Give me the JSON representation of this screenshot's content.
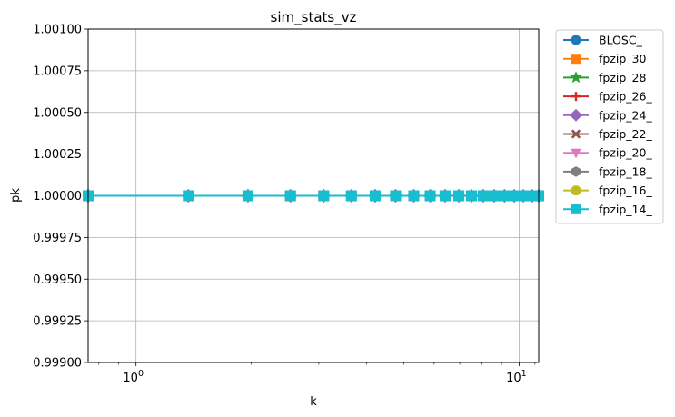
{
  "chart_data": {
    "type": "line",
    "title": "sim_stats_vz",
    "xlabel": "k",
    "ylabel": "pk",
    "x_scale": "log",
    "xlim": [
      0.75,
      11.25
    ],
    "ylim": [
      0.999,
      1.001
    ],
    "grid": true,
    "legend_position": "outside-right",
    "x_ticks": [
      {
        "value": 1,
        "label": "10",
        "exp": "0"
      },
      {
        "value": 10,
        "label": "10",
        "exp": "1"
      }
    ],
    "y_ticks": [
      {
        "value": 0.999,
        "label": "0.99900"
      },
      {
        "value": 0.99925,
        "label": "0.99925"
      },
      {
        "value": 0.9995,
        "label": "0.99950"
      },
      {
        "value": 0.99975,
        "label": "0.99975"
      },
      {
        "value": 1.0,
        "label": "1.00000"
      },
      {
        "value": 1.00025,
        "label": "1.00025"
      },
      {
        "value": 1.0005,
        "label": "1.00050"
      },
      {
        "value": 1.00075,
        "label": "1.00075"
      },
      {
        "value": 1.001,
        "label": "1.00100"
      }
    ],
    "x": [
      0.75,
      1.37,
      1.96,
      2.53,
      3.09,
      3.65,
      4.21,
      4.76,
      5.31,
      5.86,
      6.41,
      6.96,
      7.51,
      8.06,
      8.61,
      9.16,
      9.71,
      10.26,
      10.81,
      11.25
    ],
    "series": [
      {
        "name": "BLOSC_",
        "color": "#1f77b4",
        "marker": "circle",
        "values": [
          1,
          1,
          1,
          1,
          1,
          1,
          1,
          1,
          1,
          1,
          1,
          1,
          1,
          1,
          1,
          1,
          1,
          1,
          1,
          1
        ]
      },
      {
        "name": "fpzip_30_",
        "color": "#ff7f0e",
        "marker": "square",
        "values": [
          1,
          1,
          1,
          1,
          1,
          1,
          1,
          1,
          1,
          1,
          1,
          1,
          1,
          1,
          1,
          1,
          1,
          1,
          1,
          1
        ]
      },
      {
        "name": "fpzip_28_",
        "color": "#2ca02c",
        "marker": "star",
        "values": [
          1,
          1,
          1,
          1,
          1,
          1,
          1,
          1,
          1,
          1,
          1,
          1,
          1,
          1,
          1,
          1,
          1,
          1,
          1,
          1
        ]
      },
      {
        "name": "fpzip_26_",
        "color": "#d62728",
        "marker": "plus",
        "values": [
          1,
          1,
          1,
          1,
          1,
          1,
          1,
          1,
          1,
          1,
          1,
          1,
          1,
          1,
          1,
          1,
          1,
          1,
          1,
          1
        ]
      },
      {
        "name": "fpzip_24_",
        "color": "#9467bd",
        "marker": "diamond",
        "values": [
          1,
          1,
          1,
          1,
          1,
          1,
          1,
          1,
          1,
          1,
          1,
          1,
          1,
          1,
          1,
          1,
          1,
          1,
          1,
          1
        ]
      },
      {
        "name": "fpzip_22_",
        "color": "#8c564b",
        "marker": "x",
        "values": [
          1,
          1,
          1,
          1,
          1,
          1,
          1,
          1,
          1,
          1,
          1,
          1,
          1,
          1,
          1,
          1,
          1,
          1,
          1,
          1
        ]
      },
      {
        "name": "fpzip_20_",
        "color": "#e377c2",
        "marker": "triangle-down",
        "values": [
          1,
          1,
          1,
          1,
          1,
          1,
          1,
          1,
          1,
          1,
          1,
          1,
          1,
          1,
          1,
          1,
          1,
          1,
          1,
          1
        ]
      },
      {
        "name": "fpzip_18_",
        "color": "#7f7f7f",
        "marker": "hexagon",
        "values": [
          1,
          1,
          1,
          1,
          1,
          1,
          1,
          1,
          1,
          1,
          1,
          1,
          1,
          1,
          1,
          1,
          1,
          1,
          1,
          1
        ]
      },
      {
        "name": "fpzip_16_",
        "color": "#bcbd22",
        "marker": "octagon",
        "values": [
          1,
          1,
          1,
          1,
          1,
          1,
          1,
          1,
          1,
          1,
          1,
          1,
          1,
          1,
          1,
          1,
          1,
          1,
          1,
          1
        ]
      },
      {
        "name": "fpzip_14_",
        "color": "#17becf",
        "marker": "square",
        "values": [
          1,
          1,
          1,
          1,
          1,
          1,
          1,
          1,
          1,
          1,
          1,
          1,
          1,
          1,
          1,
          1,
          1,
          1,
          1,
          1
        ]
      }
    ]
  }
}
